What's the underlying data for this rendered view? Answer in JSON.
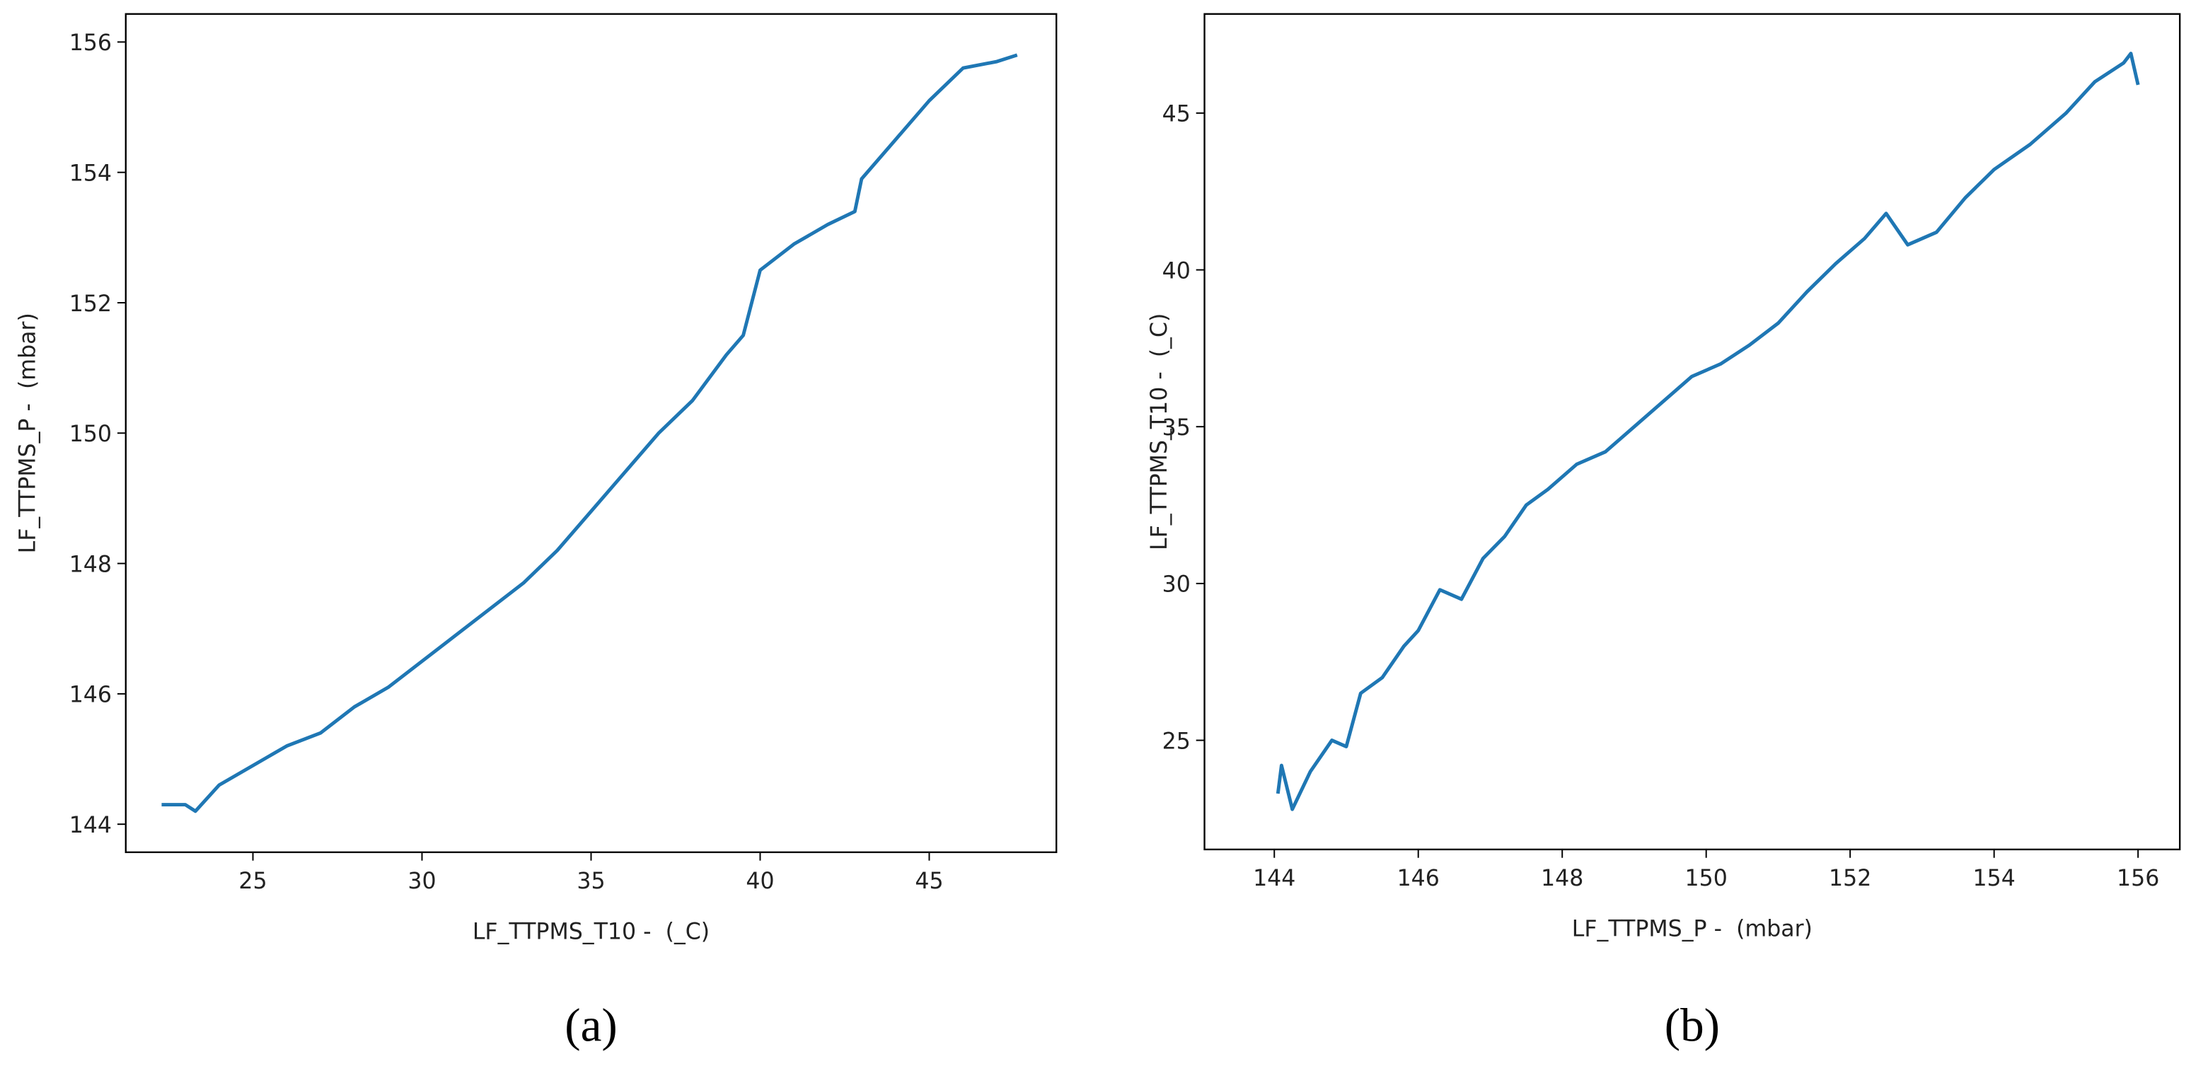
{
  "chart_data": [
    {
      "type": "line",
      "caption": "(a)",
      "xlabel": "LF_TTPMS_T10 -  (_C)",
      "ylabel": "LF_TTPMS_P -  (mbar)",
      "x": [
        22.3,
        23,
        23.3,
        24,
        25,
        26,
        27,
        28,
        29,
        30,
        31,
        32,
        33,
        34,
        35,
        36,
        37,
        38,
        39,
        39.5,
        40,
        41,
        42,
        42.8,
        43,
        44,
        45,
        46,
        47,
        47.6
      ],
      "series": [
        {
          "color": "#1f77b4",
          "values": [
            144.3,
            144.3,
            144.2,
            144.6,
            144.9,
            145.2,
            145.4,
            145.8,
            146.1,
            146.5,
            146.9,
            147.3,
            147.7,
            148.2,
            148.8,
            149.4,
            150.0,
            150.5,
            151.2,
            151.5,
            152.5,
            152.9,
            153.2,
            153.4,
            153.9,
            154.5,
            155.1,
            155.6,
            155.7,
            155.8
          ]
        }
      ],
      "xlim": [
        21.24,
        48.76
      ],
      "xticks": [
        25,
        30,
        35,
        40,
        45
      ],
      "ylim": [
        143.57,
        156.43
      ],
      "yticks": [
        144,
        146,
        148,
        150,
        152,
        154,
        156
      ]
    },
    {
      "type": "line",
      "caption": "(b)",
      "xlabel": "LF_TTPMS_P -  (mbar)",
      "ylabel": "LF_TTPMS_T10 -  (_C)",
      "x": [
        144.05,
        144.1,
        144.25,
        144.5,
        144.8,
        145.0,
        145.2,
        145.5,
        145.8,
        146,
        146.3,
        146.6,
        146.9,
        147.2,
        147.5,
        147.8,
        148.2,
        148.6,
        149,
        149.4,
        149.8,
        150.2,
        150.6,
        151,
        151.4,
        151.8,
        152.2,
        152.5,
        152.8,
        153.2,
        153.6,
        154,
        154.5,
        155,
        155.4,
        155.8,
        155.9,
        156
      ],
      "series": [
        {
          "color": "#1f77b4",
          "values": [
            23.3,
            24.2,
            22.8,
            24.0,
            25.0,
            24.8,
            26.5,
            27.0,
            28.0,
            28.5,
            29.8,
            29.5,
            30.8,
            31.5,
            32.5,
            33.0,
            33.8,
            34.2,
            35.0,
            35.8,
            36.6,
            37.0,
            37.6,
            38.3,
            39.3,
            40.2,
            41.0,
            41.8,
            40.8,
            41.2,
            42.3,
            43.2,
            44.0,
            45.0,
            46.0,
            46.6,
            46.9,
            45.9
          ]
        }
      ],
      "xlim": [
        143.03,
        156.58
      ],
      "xticks": [
        144,
        146,
        148,
        150,
        152,
        154,
        156
      ],
      "ylim": [
        21.52,
        48.16
      ],
      "yticks": [
        25,
        30,
        35,
        40,
        45
      ]
    }
  ]
}
